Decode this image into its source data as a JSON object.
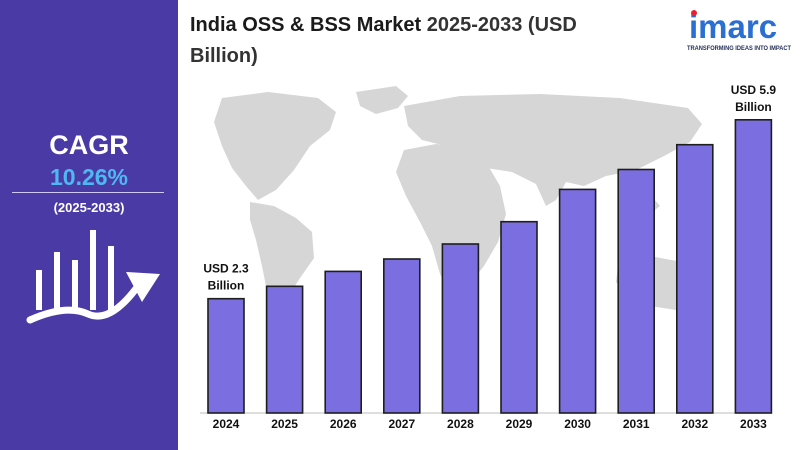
{
  "header": {
    "title_main": "India OSS & BSS Market",
    "title_years": " 2025-2033 (USD",
    "title_line2": "Billion)"
  },
  "logo": {
    "name": "imarc",
    "tagline": "TRANSFORMING IDEAS INTO IMPACT"
  },
  "cagr": {
    "label": "CAGR",
    "value": "10.26%",
    "period": "(2025-2033)"
  },
  "colors": {
    "panel": "#4a3aa6",
    "bar": "#7b6ee0",
    "bar_stroke": "#1e1e1e",
    "cagr_value": "#4fb8f0",
    "map": "#d6d6d6"
  },
  "chart_data": {
    "type": "bar",
    "categories": [
      "2024",
      "2025",
      "2026",
      "2027",
      "2028",
      "2029",
      "2030",
      "2031",
      "2032",
      "2033"
    ],
    "values": [
      2.3,
      2.55,
      2.85,
      3.1,
      3.4,
      3.85,
      4.5,
      4.9,
      5.4,
      5.9
    ],
    "ylim": [
      0,
      6.5
    ],
    "annotations": [
      {
        "index": 0,
        "line1": "USD 2.3",
        "line2": "Billion"
      },
      {
        "index": 9,
        "line1": "USD 5.9",
        "line2": "Billion"
      }
    ],
    "grid": false,
    "legend": "none"
  }
}
